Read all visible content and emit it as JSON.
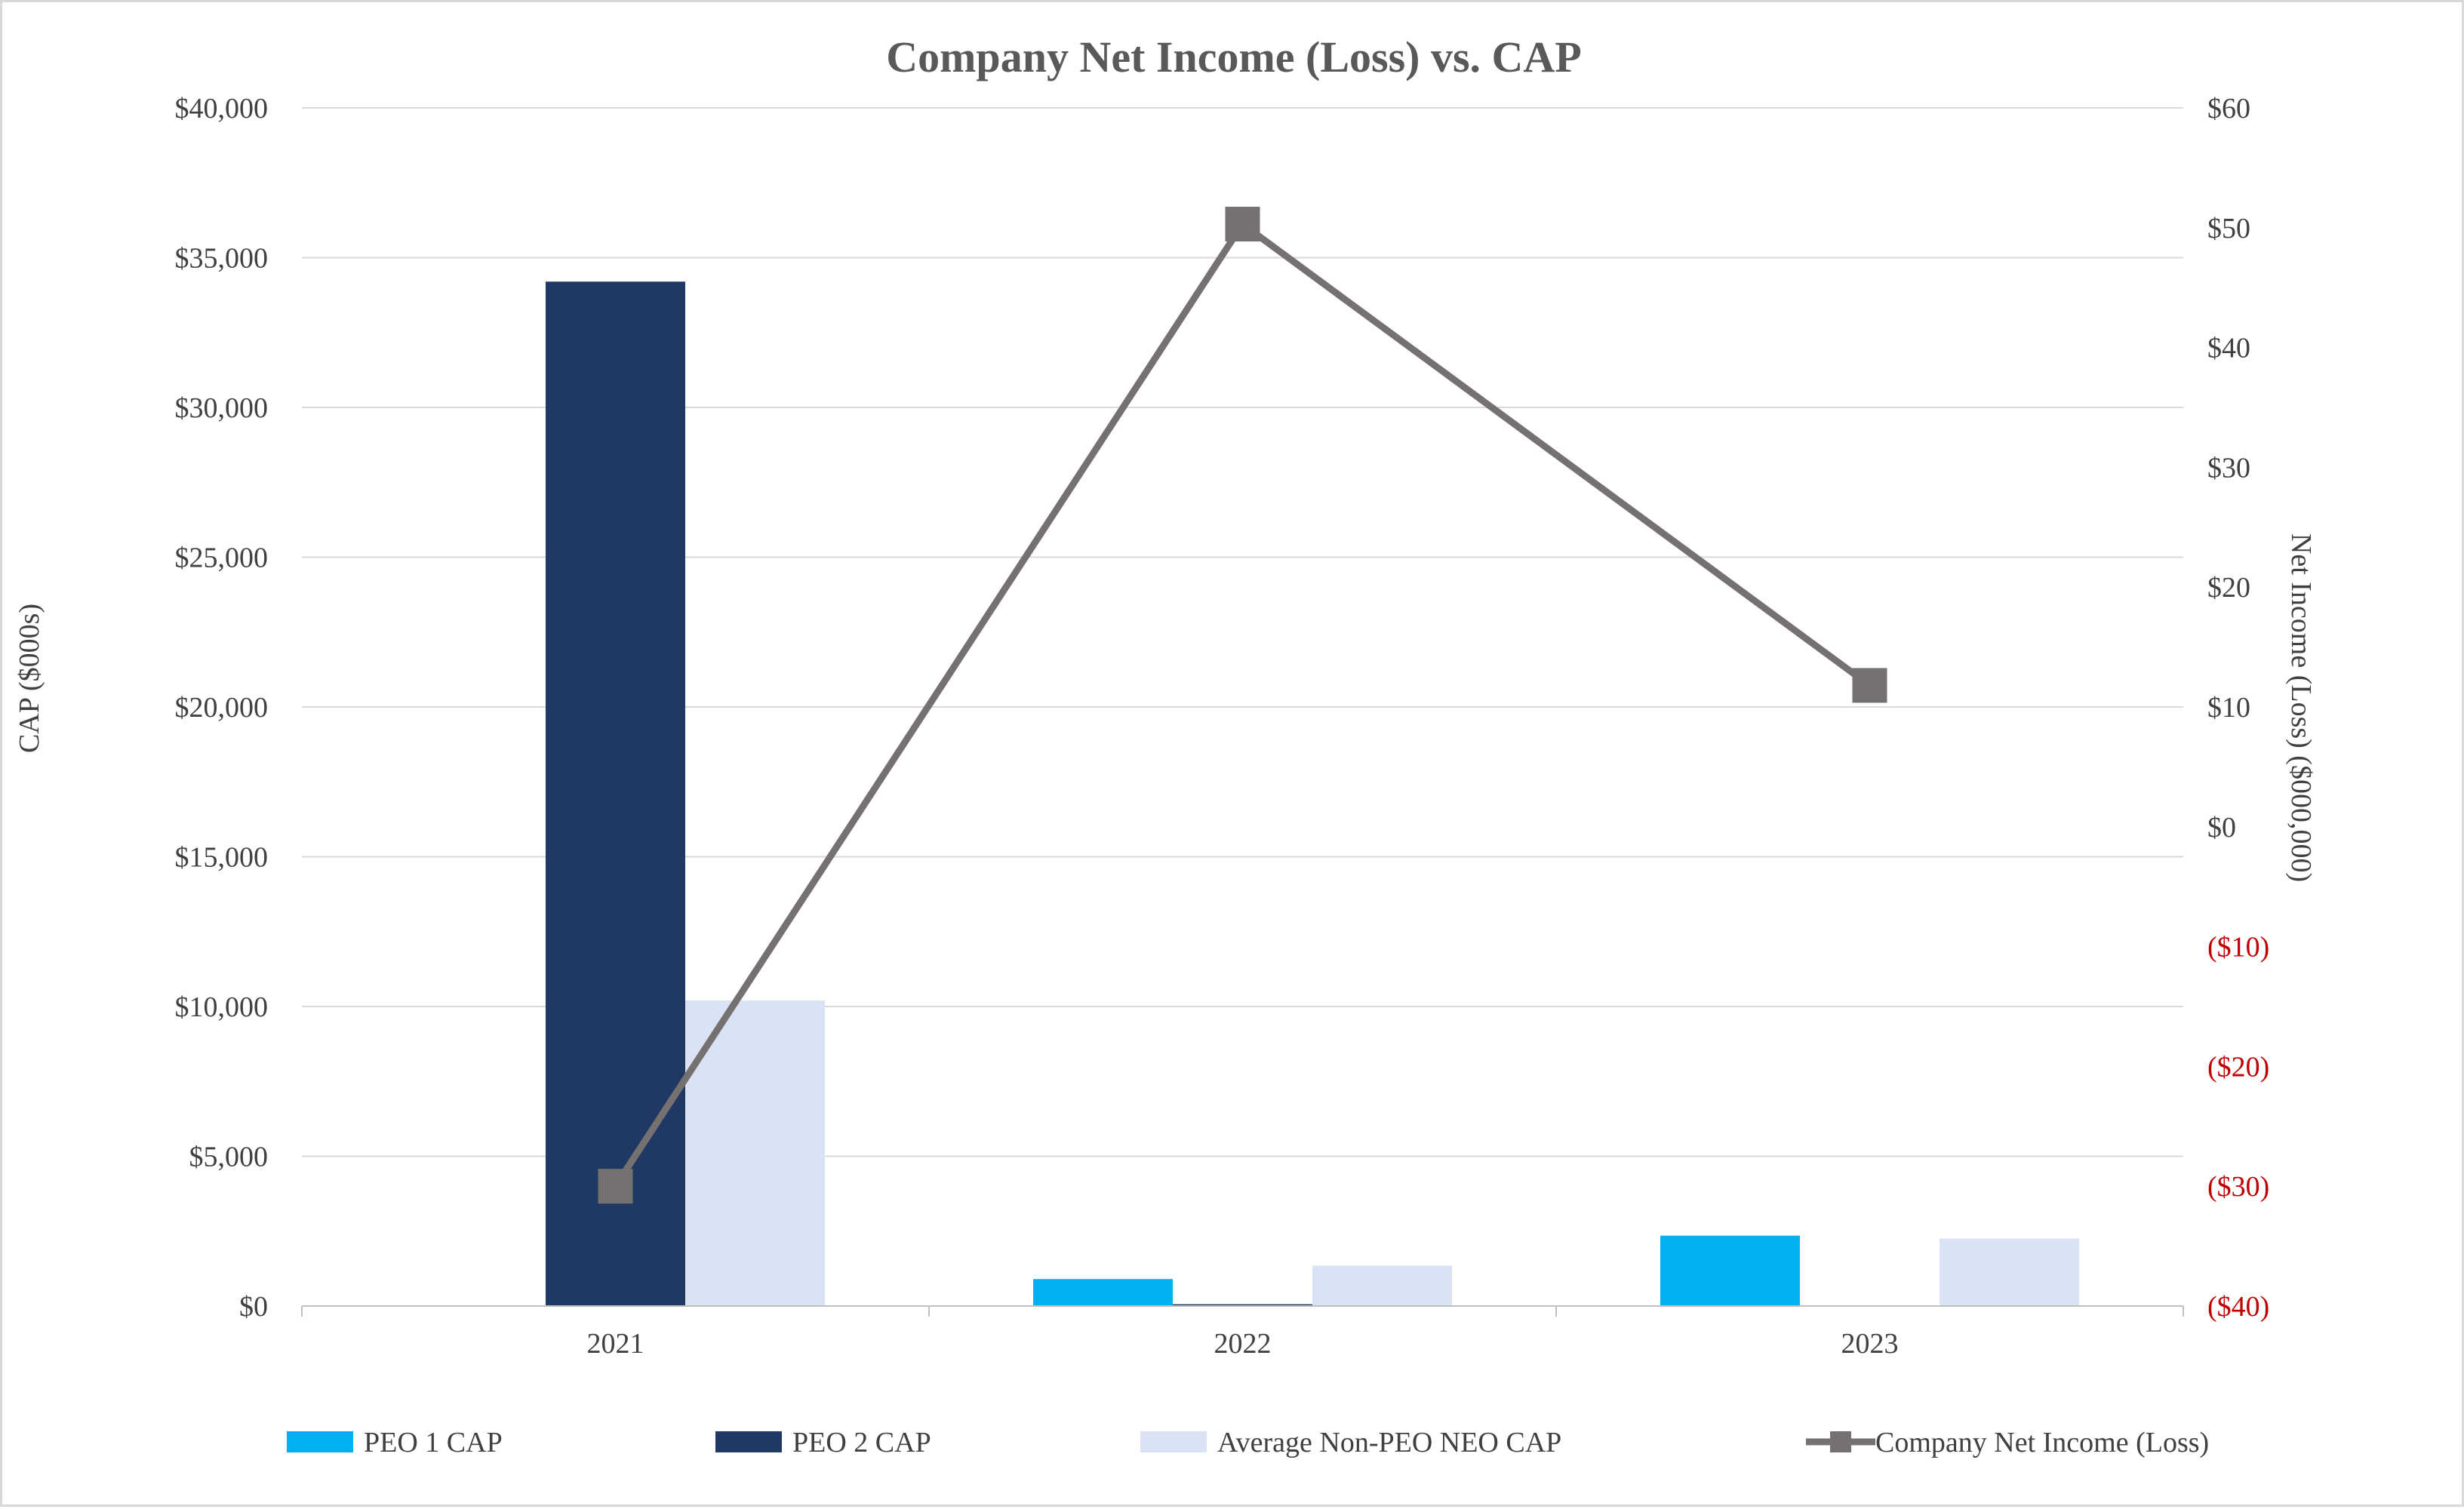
{
  "chart_data": {
    "type": "bar",
    "title": "Company Net Income (Loss) vs. CAP",
    "categories": [
      "2021",
      "2022",
      "2023"
    ],
    "y_left": {
      "label": "CAP ($000s)",
      "range": [
        0,
        40000
      ],
      "ticks": [
        0,
        5000,
        10000,
        15000,
        20000,
        25000,
        30000,
        35000,
        40000
      ],
      "tick_labels": [
        "$0",
        "$5,000",
        "$10,000",
        "$15,000",
        "$20,000",
        "$25,000",
        "$30,000",
        "$35,000",
        "$40,000"
      ]
    },
    "y_right": {
      "label": "Net Income (Loss) ($000,000)",
      "range": [
        -40,
        60
      ],
      "ticks": [
        -40,
        -30,
        -20,
        -10,
        0,
        10,
        20,
        30,
        40,
        50,
        60
      ],
      "tick_labels": [
        "($40)",
        "($30)",
        "($20)",
        "($10)",
        "$0",
        "$10",
        "$20",
        "$30",
        "$40",
        "$50",
        "$60"
      ],
      "negative_color": "#c00000"
    },
    "series": [
      {
        "name": "PEO 1 CAP",
        "kind": "bar",
        "axis": "left",
        "color": "#00b0f0",
        "values": [
          0,
          900,
          2350
        ]
      },
      {
        "name": "PEO 2 CAP",
        "kind": "bar",
        "axis": "left",
        "color": "#203864",
        "values": [
          34200,
          60,
          0
        ]
      },
      {
        "name": "Average Non-PEO NEO CAP",
        "kind": "bar",
        "axis": "left",
        "color": "#dae3f3",
        "values": [
          10200,
          1350,
          2250
        ]
      },
      {
        "name": "Company Net Income (Loss)",
        "kind": "line",
        "axis": "right",
        "color": "#767171",
        "marker": "square",
        "values": [
          -30,
          50.3,
          11.8
        ]
      }
    ],
    "grid": true,
    "legend": "bottom"
  }
}
